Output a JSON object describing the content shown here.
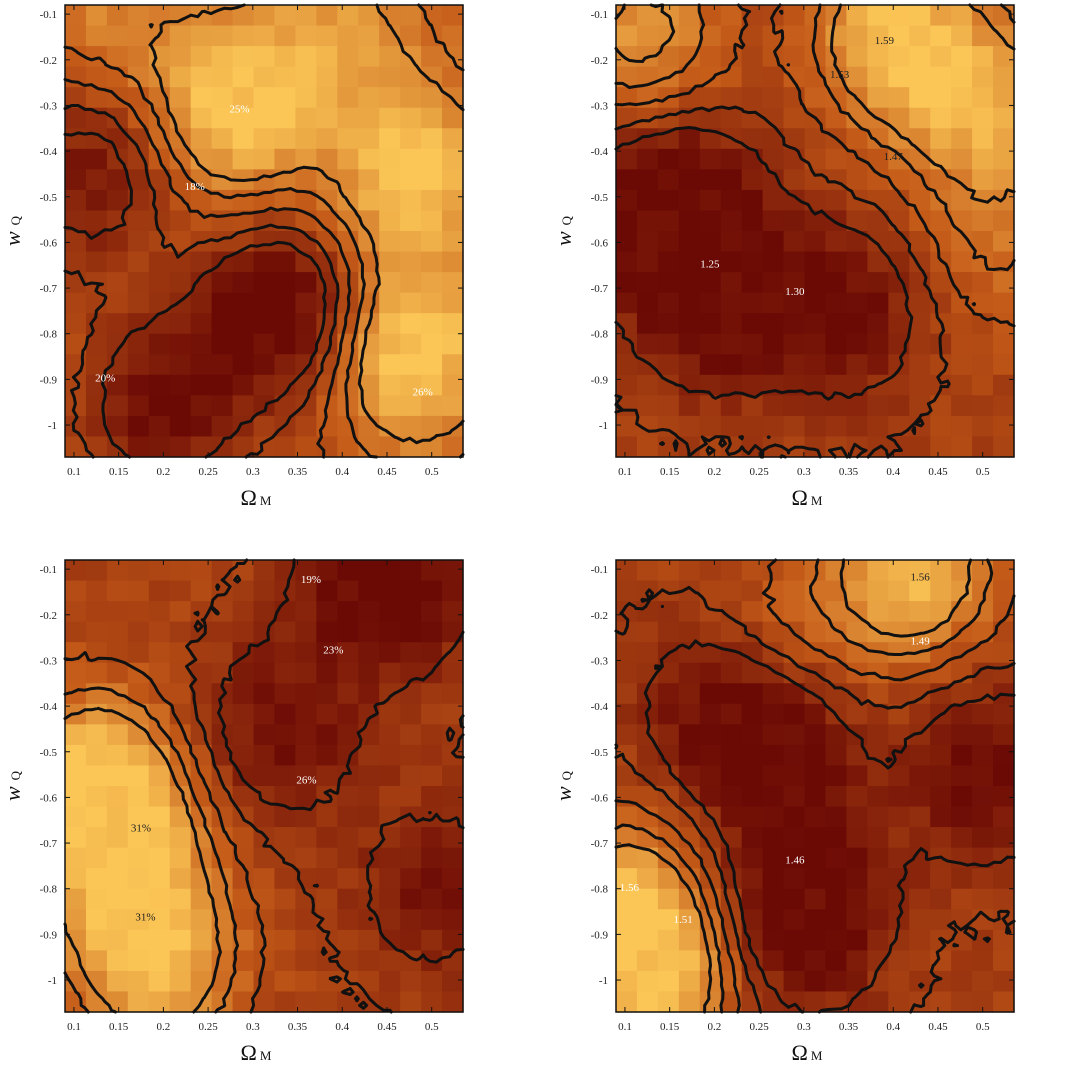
{
  "chart_data": [
    {
      "type": "heatmap",
      "panel": "top-left",
      "xlabel": "Ω",
      "xlabel_sub": "M",
      "ylabel": "w",
      "ylabel_sub": "Q",
      "xlim": [
        0.09,
        0.535
      ],
      "ylim": [
        -1.07,
        -0.08
      ],
      "xticks": [
        "0.1",
        "0.15",
        "0.2",
        "0.25",
        "0.3",
        "0.35",
        "0.4",
        "0.45",
        "0.5"
      ],
      "yticks": [
        "-0.1",
        "-0.2",
        "-0.3",
        "-0.4",
        "-0.5",
        "-0.6",
        "-0.7",
        "-0.8",
        "-0.9",
        "-1"
      ],
      "field": {
        "hot": [
          [
            0.28,
            -0.3,
            1.0
          ],
          [
            0.48,
            -0.45,
            0.9
          ],
          [
            0.48,
            -0.85,
            1.0
          ],
          [
            0.4,
            -0.15,
            0.5
          ],
          [
            0.13,
            -0.1,
            0.4
          ]
        ],
        "cold": [
          [
            0.33,
            -0.75,
            1.0
          ],
          [
            0.2,
            -0.95,
            0.8
          ],
          [
            0.12,
            -0.45,
            0.7
          ]
        ],
        "base": 0.45
      },
      "contour_labels": [
        {
          "text": "25%",
          "x": 0.285,
          "y": -0.315
        },
        {
          "text": "18%",
          "x": 0.235,
          "y": -0.485
        },
        {
          "text": "20%",
          "x": 0.135,
          "y": -0.905
        },
        {
          "text": "26%",
          "x": 0.49,
          "y": -0.935
        }
      ]
    },
    {
      "type": "heatmap",
      "panel": "top-right",
      "xlabel": "Ω",
      "xlabel_sub": "M",
      "ylabel": "w",
      "ylabel_sub": "Q",
      "xlim": [
        0.09,
        0.535
      ],
      "ylim": [
        -1.07,
        -0.08
      ],
      "xticks": [
        "0.1",
        "0.15",
        "0.2",
        "0.25",
        "0.3",
        "0.35",
        "0.4",
        "0.45",
        "0.5"
      ],
      "yticks": [
        "-0.1",
        "-0.2",
        "-0.3",
        "-0.4",
        "-0.5",
        "-0.6",
        "-0.7",
        "-0.8",
        "-0.9",
        "-1"
      ],
      "field": {
        "hot": [
          [
            0.4,
            -0.15,
            1.0
          ],
          [
            0.5,
            -0.3,
            0.8
          ],
          [
            0.12,
            -0.15,
            0.7
          ],
          [
            0.52,
            -0.6,
            0.4
          ]
        ],
        "cold": [
          [
            0.2,
            -0.7,
            1.0
          ],
          [
            0.15,
            -0.5,
            0.8
          ],
          [
            0.35,
            -0.75,
            0.6
          ]
        ],
        "base": 0.35
      },
      "contour_labels": [
        {
          "text": "1.59",
          "x": 0.39,
          "y": -0.165,
          "dark": true
        },
        {
          "text": "1.53",
          "x": 0.34,
          "y": -0.24,
          "dark": true
        },
        {
          "text": "1.47",
          "x": 0.4,
          "y": -0.42,
          "dark": true
        },
        {
          "text": "1.25",
          "x": 0.195,
          "y": -0.655
        },
        {
          "text": "1.30",
          "x": 0.29,
          "y": -0.715
        }
      ]
    },
    {
      "type": "heatmap",
      "panel": "bottom-left",
      "xlabel": "Ω",
      "xlabel_sub": "M",
      "ylabel": "w",
      "ylabel_sub": "Q",
      "xlim": [
        0.09,
        0.535
      ],
      "ylim": [
        -1.07,
        -0.08
      ],
      "xticks": [
        "0.1",
        "0.15",
        "0.2",
        "0.25",
        "0.3",
        "0.35",
        "0.4",
        "0.45",
        "0.5"
      ],
      "yticks": [
        "-0.1",
        "-0.2",
        "-0.3",
        "-0.4",
        "-0.5",
        "-0.6",
        "-0.7",
        "-0.8",
        "-0.9",
        "-1"
      ],
      "field": {
        "hot": [
          [
            0.15,
            -0.7,
            1.0
          ],
          [
            0.19,
            -0.95,
            1.0
          ],
          [
            0.12,
            -0.55,
            0.8
          ]
        ],
        "cold": [
          [
            0.45,
            -0.12,
            1.0
          ],
          [
            0.33,
            -0.45,
            0.6
          ],
          [
            0.5,
            -0.8,
            0.5
          ]
        ],
        "base": 0.35
      },
      "contour_labels": [
        {
          "text": "19%",
          "x": 0.365,
          "y": -0.13
        },
        {
          "text": "23%",
          "x": 0.39,
          "y": -0.285
        },
        {
          "text": "26%",
          "x": 0.36,
          "y": -0.57
        },
        {
          "text": "31%",
          "x": 0.175,
          "y": -0.675,
          "dark": true
        },
        {
          "text": "31%",
          "x": 0.18,
          "y": -0.87,
          "dark": true
        }
      ]
    },
    {
      "type": "heatmap",
      "panel": "bottom-right",
      "xlabel": "Ω",
      "xlabel_sub": "M",
      "ylabel": "w",
      "ylabel_sub": "Q",
      "xlim": [
        0.09,
        0.535
      ],
      "ylim": [
        -1.07,
        -0.08
      ],
      "xticks": [
        "0.1",
        "0.15",
        "0.2",
        "0.25",
        "0.3",
        "0.35",
        "0.4",
        "0.45",
        "0.5"
      ],
      "yticks": [
        "-0.1",
        "-0.2",
        "-0.3",
        "-0.4",
        "-0.5",
        "-0.6",
        "-0.7",
        "-0.8",
        "-0.9",
        "-1"
      ],
      "field": {
        "hot": [
          [
            0.42,
            -0.1,
            1.0
          ],
          [
            0.1,
            -0.85,
            0.9
          ],
          [
            0.14,
            -1.0,
            0.8
          ],
          [
            0.28,
            -0.25,
            0.3
          ]
        ],
        "cold": [
          [
            0.3,
            -0.85,
            1.0
          ],
          [
            0.27,
            -0.5,
            0.7
          ],
          [
            0.5,
            -0.55,
            0.7
          ],
          [
            0.2,
            -0.4,
            0.5
          ]
        ],
        "base": 0.35
      },
      "contour_labels": [
        {
          "text": "1.56",
          "x": 0.43,
          "y": -0.125,
          "dark": true
        },
        {
          "text": "1.49",
          "x": 0.43,
          "y": -0.265
        },
        {
          "text": "1.46",
          "x": 0.29,
          "y": -0.745
        },
        {
          "text": "1.56",
          "x": 0.105,
          "y": -0.805
        },
        {
          "text": "1.51",
          "x": 0.165,
          "y": -0.875
        }
      ]
    }
  ],
  "colors": {
    "palette_dark": "#6b0a05",
    "palette_mid": "#c45a18",
    "palette_bright": "#fbc656",
    "contour": "#111111"
  }
}
